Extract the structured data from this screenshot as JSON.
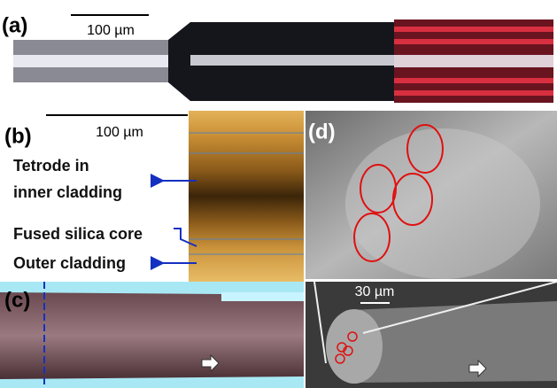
{
  "panel_a": {
    "label": "(a)",
    "scale_bar": "100 µm"
  },
  "panel_b": {
    "label": "(b)",
    "scale_bar": "100 µm",
    "annotations": [
      "Tetrode in",
      "inner cladding",
      "Fused silica core",
      "Outer cladding"
    ]
  },
  "panel_c": {
    "label": "(c)"
  },
  "panel_d": {
    "label": "(d)",
    "scale_bar": "30 µm"
  }
}
